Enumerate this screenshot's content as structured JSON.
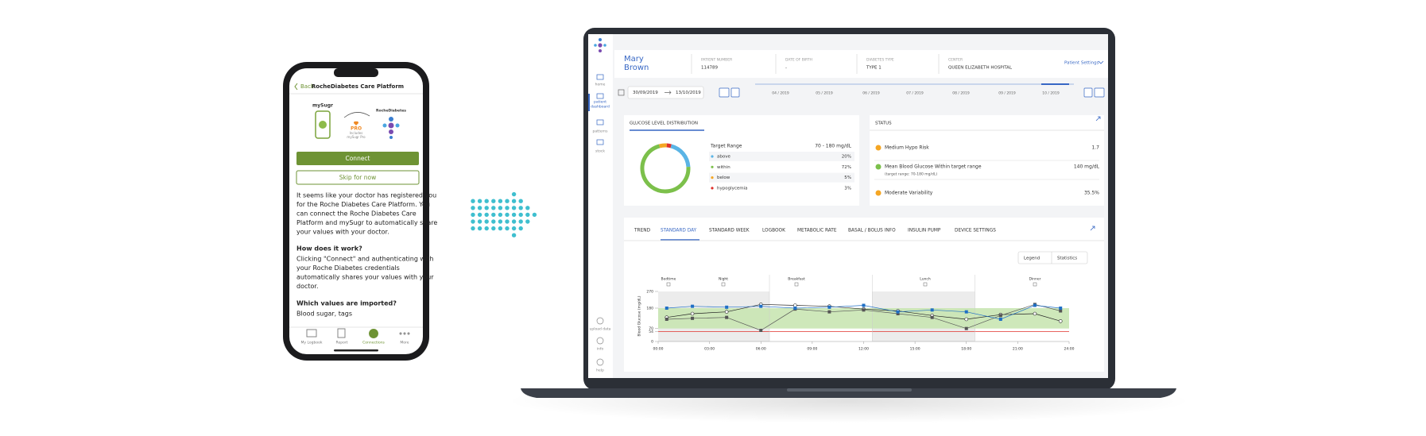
{
  "phone": {
    "back": "Back",
    "title": "RocheDiabetes Care Platform",
    "mysugr": "mySugr",
    "pro": "PRO",
    "pro_note": [
      "Includes",
      "mySugr Pro"
    ],
    "roche": "RocheDiabetes",
    "connect": "Connect",
    "skip": "Skip for now",
    "intro": [
      "It seems like your doctor has registered you",
      "for the Roche Diabetes Care Platform. You",
      "can connect the Roche Diabetes Care",
      "Platform and mySugr to automatically share",
      "your values with your doctor."
    ],
    "q1": "How does it work?",
    "a1": [
      "Clicking \"Connect\" and authenticating with",
      "your Roche Diabetes credentials",
      "automatically shares your values with your",
      "doctor."
    ],
    "q2": "Which values are imported?",
    "a2": "Blood sugar, tags",
    "tabs": [
      "My Logbook",
      "Report",
      "Connections",
      "More"
    ]
  },
  "dashboard": {
    "nav": [
      "home",
      "patient",
      "dashboard",
      "patterns",
      "stock"
    ],
    "footer_nav": [
      "upload data",
      "info",
      "help"
    ],
    "patient": {
      "first": "Mary",
      "last": "Brown",
      "fields": [
        {
          "label": "PATIENT NUMBER",
          "value": "114789"
        },
        {
          "label": "DATE OF BIRTH",
          "value": "-"
        },
        {
          "label": "DIABETES TYPE",
          "value": "TYPE 1"
        },
        {
          "label": "CENTER",
          "value": "QUEEN ELIZABETH HOSPITAL"
        }
      ],
      "settings": "Patient Settings"
    },
    "date_from": "30/09/2019",
    "date_to": "13/10/2019",
    "months": [
      "04 / 2019",
      "05 / 2019",
      "06 / 2019",
      "07 / 2019",
      "08 / 2019",
      "09 / 2019",
      "10 / 2019"
    ],
    "glucose_title": "GLUCOSE LEVEL DISTRIBUTION",
    "target_label": "Target Range",
    "target_value": "70 - 180 mg/dL",
    "status_title": "STATUS",
    "status": [
      {
        "label": "Medium Hypo Risk",
        "value": "1.7",
        "color": "#f5a623"
      },
      {
        "label": "Mean Blood Glucose Within target range",
        "note": "(target range: 70-180 mg/dL)",
        "value": "140 mg/dL",
        "color": "#7cc04b"
      },
      {
        "label": "Moderate Variability",
        "value": "35.5%",
        "color": "#f5a623"
      }
    ],
    "tabs": [
      "TREND",
      "STANDARD DAY",
      "STANDARD WEEK",
      "LOGBOOK",
      "METABOLIC RATE",
      "BASAL / BOLUS INFO",
      "INSULIN PUMP",
      "DEVICE SETTINGS"
    ],
    "active_tab": 1,
    "legend_button": "Legend",
    "statistics_button": "Statistics",
    "meals": [
      "Bedtime",
      "Night",
      "Breakfast",
      "Lunch",
      "Dinner"
    ]
  },
  "chart_data": [
    {
      "type": "pie",
      "categories": [
        "above",
        "within",
        "below",
        "hypoglycemia"
      ],
      "values": [
        20,
        72,
        5,
        3
      ],
      "value_labels": [
        "20%",
        "72%",
        "5%",
        "3%"
      ],
      "colors": [
        "#5ab4e5",
        "#7cc04b",
        "#f5a623",
        "#e0322c"
      ]
    },
    {
      "type": "line",
      "y_label": "Blood Glucose (mg/dL)",
      "x": [
        0.5,
        2,
        4,
        6,
        8,
        10,
        12,
        14,
        16,
        18,
        20,
        22,
        23.5
      ],
      "xlim": [
        0,
        24
      ],
      "xticks": [
        {
          "value": 0,
          "label": "00:00"
        },
        {
          "value": 3,
          "label": "03:00"
        },
        {
          "value": 6,
          "label": "06:00"
        },
        {
          "value": 9,
          "label": "09:00"
        },
        {
          "value": 12,
          "label": "12:00"
        },
        {
          "value": 15,
          "label": "15:00"
        },
        {
          "value": 18,
          "label": "18:00"
        },
        {
          "value": 21,
          "label": "21:00"
        },
        {
          "value": 24,
          "label": "24:00"
        }
      ],
      "ylim": [
        0,
        270
      ],
      "yticks": [
        0,
        54,
        70,
        180,
        270
      ],
      "target_band": [
        70,
        180
      ],
      "hypo_line": 54,
      "series": [
        {
          "color": "#222222",
          "values": [
            130,
            150,
            160,
            200,
            195,
            190,
            175,
            165,
            140,
            120,
            145,
            150,
            110
          ]
        },
        {
          "color": "#555555",
          "values": [
            120,
            125,
            130,
            60,
            175,
            160,
            170,
            150,
            130,
            70,
            140,
            200,
            165
          ]
        },
        {
          "color": "#1f6fc5",
          "values": [
            180,
            190,
            185,
            190,
            180,
            185,
            195,
            160,
            170,
            160,
            120,
            195,
            180
          ]
        }
      ]
    }
  ]
}
